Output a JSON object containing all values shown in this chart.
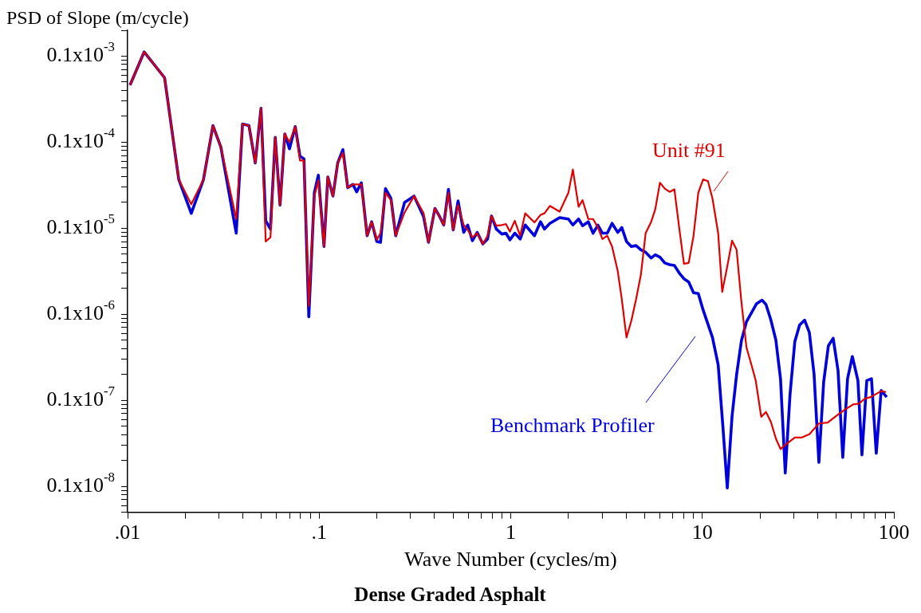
{
  "chart_data": {
    "type": "line",
    "title": "Dense Graded Asphalt",
    "xlabel": "Wave Number (cycles/m)",
    "ylabel": "PSD of Slope (m/cycle)",
    "log": "xy",
    "grid": false,
    "legend": false,
    "marker": "none",
    "line_style": "solid",
    "xlim": [
      0.01,
      100
    ],
    "ylim": [
      5e-10,
      0.0002
    ],
    "xticks": [
      {
        "value": 0.01,
        "label": ".01"
      },
      {
        "value": 0.02,
        "label": null
      },
      {
        "value": 0.03,
        "label": null
      },
      {
        "value": 0.04,
        "label": null
      },
      {
        "value": 0.05,
        "label": null
      },
      {
        "value": 0.06,
        "label": null
      },
      {
        "value": 0.07,
        "label": null
      },
      {
        "value": 0.08,
        "label": null
      },
      {
        "value": 0.09,
        "label": null
      },
      {
        "value": 0.1,
        "label": ".1"
      },
      {
        "value": 0.2,
        "label": null
      },
      {
        "value": 0.3,
        "label": null
      },
      {
        "value": 0.4,
        "label": null
      },
      {
        "value": 0.5,
        "label": null
      },
      {
        "value": 0.6,
        "label": null
      },
      {
        "value": 0.7,
        "label": null
      },
      {
        "value": 0.8,
        "label": null
      },
      {
        "value": 0.9,
        "label": null
      },
      1,
      {
        "value": 2,
        "label": null
      },
      {
        "value": 3,
        "label": null
      },
      {
        "value": 4,
        "label": null
      },
      {
        "value": 5,
        "label": null
      },
      {
        "value": 6,
        "label": null
      },
      {
        "value": 7,
        "label": null
      },
      {
        "value": 8,
        "label": null
      },
      {
        "value": 9,
        "label": null
      },
      10,
      {
        "value": 20,
        "label": null
      },
      {
        "value": 30,
        "label": null
      },
      {
        "value": 40,
        "label": null
      },
      {
        "value": 50,
        "label": null
      },
      {
        "value": 60,
        "label": null
      },
      {
        "value": 70,
        "label": null
      },
      {
        "value": 80,
        "label": null
      },
      {
        "value": 90,
        "label": null
      },
      100
    ],
    "yticks": [
      {
        "value": 5e-10,
        "label": null
      },
      {
        "value": 6e-10,
        "label": null
      },
      {
        "value": 7e-10,
        "label": null
      },
      {
        "value": 8e-10,
        "label": null
      },
      {
        "value": 9e-10,
        "label": null
      },
      {
        "value": 1e-09,
        "label": "0.1x10$^{-8}$"
      },
      {
        "value": 2e-09,
        "label": null
      },
      {
        "value": 3e-09,
        "label": null
      },
      {
        "value": 4e-09,
        "label": null
      },
      {
        "value": 5e-09,
        "label": null
      },
      {
        "value": 6e-09,
        "label": null
      },
      {
        "value": 7e-09,
        "label": null
      },
      {
        "value": 8e-09,
        "label": null
      },
      {
        "value": 9e-09,
        "label": null
      },
      {
        "value": 1e-08,
        "label": "0.1x10$^{-7}$"
      },
      {
        "value": 2e-08,
        "label": null
      },
      {
        "value": 3e-08,
        "label": null
      },
      {
        "value": 4e-08,
        "label": null
      },
      {
        "value": 5e-08,
        "label": null
      },
      {
        "value": 6e-08,
        "label": null
      },
      {
        "value": 7e-08,
        "label": null
      },
      {
        "value": 8e-08,
        "label": null
      },
      {
        "value": 9e-08,
        "label": null
      },
      {
        "value": 1e-07,
        "label": "0.1x10$^{-6}$"
      },
      {
        "value": 2e-07,
        "label": null
      },
      {
        "value": 3e-07,
        "label": null
      },
      {
        "value": 4e-07,
        "label": null
      },
      {
        "value": 5e-07,
        "label": null
      },
      {
        "value": 6e-07,
        "label": null
      },
      {
        "value": 7e-07,
        "label": null
      },
      {
        "value": 8e-07,
        "label": null
      },
      {
        "value": 9e-07,
        "label": null
      },
      {
        "value": 1e-06,
        "label": "0.1x10$^{-5}$"
      },
      {
        "value": 2e-06,
        "label": null
      },
      {
        "value": 3e-06,
        "label": null
      },
      {
        "value": 4e-06,
        "label": null
      },
      {
        "value": 5e-06,
        "label": null
      },
      {
        "value": 6e-06,
        "label": null
      },
      {
        "value": 7e-06,
        "label": null
      },
      {
        "value": 8e-06,
        "label": null
      },
      {
        "value": 9e-06,
        "label": null
      },
      {
        "value": 1e-05,
        "label": "0.1x10$^{-4}$"
      },
      {
        "value": 2e-05,
        "label": null
      },
      {
        "value": 3e-05,
        "label": null
      },
      {
        "value": 4e-05,
        "label": null
      },
      {
        "value": 5e-05,
        "label": null
      },
      {
        "value": 6e-05,
        "label": null
      },
      {
        "value": 7e-05,
        "label": null
      },
      {
        "value": 8e-05,
        "label": null
      },
      {
        "value": 9e-05,
        "label": null
      },
      {
        "value": 0.0001,
        "label": "0.1x10$^{-3}$"
      },
      {
        "value": 0.0002,
        "label": null
      }
    ],
    "series": [
      {
        "name": "Benchmark Profiler",
        "color": "#0000dd",
        "x": [
          0.0103,
          0.0122,
          0.0156,
          0.0185,
          0.0215,
          0.0249,
          0.0279,
          0.0307,
          0.0369,
          0.0398,
          0.043,
          0.0464,
          0.0497,
          0.0526,
          0.0557,
          0.059,
          0.0625,
          0.0662,
          0.07,
          0.075,
          0.0794,
          0.0833,
          0.0883,
          0.0944,
          0.099,
          0.106,
          0.111,
          0.118,
          0.125,
          0.133,
          0.141,
          0.15,
          0.157,
          0.166,
          0.178,
          0.188,
          0.2,
          0.209,
          0.222,
          0.237,
          0.251,
          0.279,
          0.313,
          0.351,
          0.372,
          0.402,
          0.426,
          0.447,
          0.473,
          0.501,
          0.531,
          0.568,
          0.596,
          0.631,
          0.668,
          0.715,
          0.757,
          0.794,
          0.841,
          0.9,
          0.944,
          0.99,
          1.05,
          1.12,
          1.19,
          1.33,
          1.43,
          1.5,
          1.6,
          1.8,
          2.0,
          2.11,
          2.26,
          2.37,
          2.54,
          2.69,
          2.85,
          3.01,
          3.19,
          3.38,
          3.62,
          3.8,
          4.02,
          4.26,
          4.51,
          4.78,
          5.06,
          5.41,
          5.68,
          6.01,
          6.37,
          6.75,
          7.15,
          7.57,
          8.02,
          8.49,
          9.0,
          9.53,
          10.1,
          10.7,
          11.3,
          12.1,
          12.8,
          13.5,
          14.3,
          15.1,
          16.0,
          17.0,
          19.2,
          20.5,
          21.5,
          22.8,
          24.2,
          25.6,
          27.1,
          28.7,
          30.4,
          32.2,
          34.2,
          36.2,
          38.3,
          40.6,
          43.0,
          45.5,
          48.2,
          51.1,
          54.1,
          57.3,
          60.7,
          64.9,
          68.1,
          72.2,
          76.4,
          80.9,
          85.8,
          91.7
        ],
        "values": [
          4.61e-05,
          0.000112,
          5.62e-05,
          3.69e-06,
          1.49e-06,
          3.69e-06,
          1.56e-05,
          8.76e-06,
          8.76e-07,
          1.63e-05,
          1.56e-05,
          5.75e-06,
          2.48e-05,
          1.22e-06,
          9.78e-07,
          1.14e-05,
          1.86e-06,
          1.25e-05,
          8.38e-06,
          1.52e-05,
          6.86e-06,
          6.42e-06,
          9.36e-08,
          2.59e-06,
          4.13e-06,
          6.14e-07,
          3.95e-06,
          2.37e-06,
          5.75e-06,
          8.19e-06,
          2.96e-06,
          3.23e-06,
          2.65e-06,
          3.38e-06,
          8.19e-07,
          1.19e-06,
          7.02e-07,
          6.86e-07,
          2.89e-06,
          2.22e-06,
          8.19e-07,
          1.99e-06,
          2.37e-06,
          1.36e-06,
          6.86e-07,
          1.7e-06,
          1.36e-06,
          1.09e-06,
          2.83e-06,
          9.57e-07,
          2.08e-06,
          8.95e-07,
          1.09e-06,
          7.17e-07,
          8.95e-07,
          6.57e-07,
          7.5e-07,
          1.39e-06,
          9.78e-07,
          8.56e-07,
          8.76e-07,
          7.33e-07,
          8.76e-07,
          7.5e-07,
          1.09e-06,
          8.19e-07,
          1.19e-06,
          9.78e-07,
          1.14e-06,
          1.33e-06,
          1.28e-06,
          1.09e-06,
          1.28e-06,
          1.07e-06,
          1.19e-06,
          8.76e-07,
          1.09e-06,
          8.76e-07,
          8.76e-07,
          1.14e-06,
          8.95e-07,
          1.02e-06,
          7.02e-07,
          6.14e-07,
          6.28e-07,
          5.62e-07,
          5.26e-07,
          4.51e-07,
          4.92e-07,
          4.61e-07,
          3.95e-07,
          3.78e-07,
          3.69e-07,
          3.03e-07,
          2.59e-07,
          2.37e-07,
          1.78e-07,
          1.74e-07,
          1.12e-07,
          7.67e-08,
          5.38e-08,
          2.59e-08,
          5.03e-09,
          9.57e-10,
          6.57e-09,
          1.99e-08,
          4.92e-08,
          8.19e-08,
          1.33e-07,
          1.46e-07,
          1.3e-07,
          8.56e-08,
          5.03e-08,
          1.78e-08,
          1.43e-09,
          1.17e-08,
          4.82e-08,
          7.5e-08,
          8.56e-08,
          6.14e-08,
          2.03e-08,
          1.9e-09,
          1.63e-08,
          4.31e-08,
          5.26e-08,
          2.22e-08,
          2.17e-09,
          1.78e-08,
          3.23e-08,
          1.7e-08,
          2.32e-09,
          1.7e-08,
          1.78e-08,
          2.42e-09,
          1.3e-08,
          1.09e-08
        ]
      },
      {
        "name": "Unit #91",
        "color": "#e00000",
        "x": [
          0.0103,
          0.0122,
          0.0156,
          0.0185,
          0.0215,
          0.0249,
          0.0279,
          0.0307,
          0.0369,
          0.0398,
          0.043,
          0.0464,
          0.0497,
          0.0526,
          0.0557,
          0.059,
          0.0625,
          0.0662,
          0.07,
          0.075,
          0.0794,
          0.0833,
          0.0883,
          0.0944,
          0.099,
          0.106,
          0.111,
          0.118,
          0.125,
          0.133,
          0.141,
          0.15,
          0.157,
          0.166,
          0.178,
          0.188,
          0.2,
          0.209,
          0.222,
          0.237,
          0.251,
          0.279,
          0.313,
          0.351,
          0.372,
          0.402,
          0.426,
          0.447,
          0.473,
          0.501,
          0.531,
          0.568,
          0.596,
          0.631,
          0.668,
          0.715,
          0.757,
          0.794,
          0.841,
          0.9,
          0.944,
          0.99,
          1.05,
          1.12,
          1.19,
          1.33,
          1.43,
          1.5,
          1.6,
          1.8,
          2.0,
          2.11,
          2.26,
          2.37,
          2.54,
          2.69,
          2.85,
          3.01,
          3.19,
          3.38,
          3.62,
          3.8,
          4.02,
          4.26,
          4.51,
          4.78,
          5.06,
          5.41,
          5.68,
          6.01,
          6.37,
          6.75,
          7.15,
          7.57,
          8.02,
          8.49,
          9.0,
          9.53,
          10.1,
          10.7,
          11.3,
          12.1,
          12.7,
          13.5,
          14.3,
          15.1,
          16.0,
          17.0,
          18.1,
          19.0,
          20.3,
          21.5,
          22.8,
          24.2,
          25.6,
          27.1,
          30.4,
          32.9,
          36.2,
          40.6,
          45.1,
          50.6,
          55.7,
          61.3,
          65.6,
          70.8,
          75.7,
          85.8,
          90.9
        ],
        "values": [
          4.61e-05,
          0.000112,
          5.62e-05,
          3.69e-06,
          1.9e-06,
          3.69e-06,
          1.56e-05,
          8.76e-06,
          1.28e-06,
          1.63e-05,
          1.56e-05,
          5.75e-06,
          2.48e-05,
          7.02e-07,
          7.84e-07,
          1.14e-05,
          1.86e-06,
          1.25e-05,
          1e-05,
          1.52e-05,
          6.14e-06,
          6.14e-06,
          1.25e-07,
          2.37e-06,
          3.61e-06,
          6.14e-07,
          3.95e-06,
          2.37e-06,
          5.75e-06,
          7.5e-06,
          2.96e-06,
          3.23e-06,
          3.23e-06,
          3.23e-06,
          8.19e-07,
          1.19e-06,
          7.33e-07,
          8.76e-07,
          2.59e-06,
          2.12e-06,
          8.19e-07,
          1.52e-06,
          2.37e-06,
          1.49e-06,
          6.86e-07,
          1.7e-06,
          1.36e-06,
          1.09e-06,
          2.59e-06,
          9.57e-07,
          1.86e-06,
          1.09e-06,
          9.57e-07,
          7.84e-07,
          8.76e-07,
          6.57e-07,
          8.19e-07,
          1.39e-06,
          1.07e-06,
          1.09e-06,
          1.12e-06,
          9.15e-07,
          1.22e-06,
          8.19e-07,
          1.49e-06,
          1.17e-06,
          1.43e-06,
          1.49e-06,
          1.82e-06,
          1.56e-06,
          2.59e-06,
          4.82e-06,
          1.78e-06,
          2.12e-06,
          1.28e-06,
          1.28e-06,
          1.02e-06,
          7.5e-07,
          8.19e-07,
          6.14e-07,
          3.16e-07,
          1.49e-07,
          5.38e-08,
          8.38e-08,
          1.49e-07,
          2.89e-07,
          8.76e-07,
          1.19e-06,
          1.66e-06,
          3.38e-06,
          2.89e-06,
          2.65e-06,
          2.83e-06,
          1.02e-06,
          3.86e-07,
          3.95e-07,
          8.19e-07,
          2.59e-06,
          3.69e-06,
          3.53e-06,
          2.22e-06,
          8.76e-07,
          1.82e-07,
          3.61e-07,
          7.17e-07,
          5.62e-07,
          1.39e-07,
          4.13e-08,
          2.53e-08,
          1.7e-08,
          6.42e-09,
          7.33e-09,
          5.62e-09,
          3.61e-09,
          2.71e-09,
          3.03e-09,
          3.69e-09,
          3.69e-09,
          4.03e-09,
          5.38e-09,
          5.5e-09,
          6.71e-09,
          7.84e-09,
          8.95e-09,
          9.15e-09,
          1.05e-08,
          1.09e-08,
          1.28e-08,
          1.25e-08
        ]
      }
    ]
  }
}
